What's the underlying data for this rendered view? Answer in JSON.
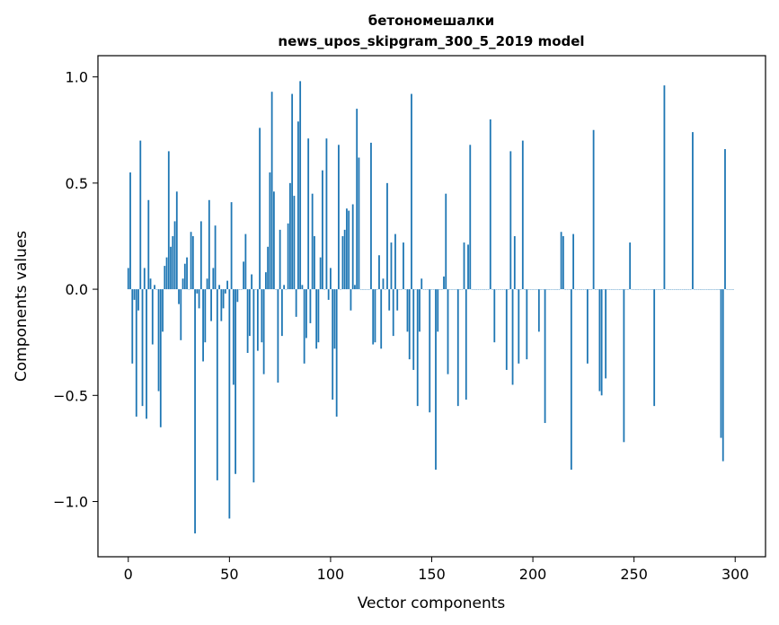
{
  "chart_data": {
    "type": "bar",
    "title": "бетономешалки",
    "subtitle": "news_upos_skipgram_300_5_2019 model",
    "xlabel": "Vector components",
    "ylabel": "Components values",
    "xlim": [
      -15,
      315
    ],
    "ylim": [
      -1.26,
      1.1
    ],
    "xticks": [
      0,
      50,
      100,
      150,
      200,
      250,
      300
    ],
    "xtick_labels": [
      "0",
      "50",
      "100",
      "150",
      "200",
      "250",
      "300"
    ],
    "yticks": [
      1.0,
      0.5,
      0.0,
      -0.5,
      -1.0
    ],
    "ytick_labels": [
      "1.0",
      "0.5",
      "0.0",
      "−0.5",
      "−1.0"
    ],
    "grid": false,
    "bar_color": "#1f77b4",
    "values": [
      0.1,
      0.55,
      -0.35,
      -0.05,
      -0.6,
      -0.1,
      0.7,
      -0.55,
      0.1,
      -0.61,
      0.42,
      0.05,
      -0.26,
      0.02,
      0.0,
      -0.48,
      -0.65,
      -0.2,
      0.11,
      0.15,
      0.65,
      0.2,
      0.25,
      0.32,
      0.46,
      -0.07,
      -0.24,
      0.05,
      0.12,
      0.15,
      0.0,
      0.27,
      0.25,
      -1.15,
      -0.02,
      -0.09,
      0.32,
      -0.34,
      -0.25,
      0.05,
      0.42,
      -0.15,
      0.1,
      0.3,
      -0.9,
      0.02,
      -0.15,
      -0.09,
      -0.02,
      0.04,
      -1.08,
      0.41,
      -0.45,
      -0.87,
      -0.06,
      0.0,
      0.0,
      0.13,
      0.26,
      -0.3,
      -0.22,
      0.07,
      -0.91,
      0.0,
      -0.29,
      0.76,
      -0.25,
      -0.4,
      0.08,
      0.2,
      0.55,
      0.93,
      0.46,
      0.0,
      -0.44,
      0.28,
      -0.22,
      0.02,
      0.0,
      0.31,
      0.5,
      0.92,
      0.44,
      -0.13,
      0.79,
      0.98,
      0.02,
      -0.35,
      -0.23,
      0.71,
      -0.16,
      0.45,
      0.25,
      -0.28,
      -0.25,
      0.15,
      0.56,
      0.0,
      0.71,
      -0.05,
      0.1,
      -0.52,
      -0.28,
      -0.6,
      0.68,
      0.0,
      0.25,
      0.28,
      0.38,
      0.37,
      -0.1,
      0.4,
      0.02,
      0.85,
      0.62,
      0.0,
      0.0,
      0.0,
      0.0,
      0.0,
      0.69,
      -0.26,
      -0.25,
      0.0,
      0.16,
      -0.28,
      0.05,
      0.0,
      0.5,
      -0.1,
      0.22,
      -0.22,
      0.26,
      -0.1,
      0.0,
      0.0,
      0.22,
      0.0,
      -0.2,
      -0.33,
      0.92,
      -0.38,
      0.0,
      -0.55,
      -0.2,
      0.05,
      0.0,
      0.0,
      0.0,
      -0.58,
      0.0,
      0.0,
      -0.85,
      -0.2,
      0.0,
      0.0,
      0.06,
      0.45,
      -0.4,
      0.0,
      0.0,
      0.0,
      0.0,
      -0.55,
      0.0,
      0.0,
      0.22,
      -0.52,
      0.21,
      0.68,
      0.0,
      0.0,
      0.0,
      0.0,
      0.0,
      0.0,
      0.0,
      0.0,
      0.0,
      0.8,
      0.0,
      -0.25,
      0.0,
      0.0,
      0.0,
      0.0,
      0.0,
      -0.38,
      0.0,
      0.65,
      -0.45,
      0.25,
      0.0,
      -0.35,
      0.0,
      0.7,
      0.0,
      -0.33,
      0.0,
      0.0,
      0.0,
      0.0,
      0.0,
      -0.2,
      0.0,
      0.0,
      -0.63,
      0.0,
      0.0,
      0.0,
      0.0,
      0.0,
      0.0,
      0.0,
      0.27,
      0.25,
      0.0,
      0.0,
      0.0,
      -0.85,
      0.26,
      0.0,
      0.0,
      0.0,
      0.0,
      0.0,
      0.0,
      -0.35,
      0.0,
      0.0,
      0.75,
      0.0,
      0.0,
      -0.48,
      -0.5,
      0.0,
      -0.42,
      0.0,
      0.0,
      0.0,
      0.0,
      0.0,
      0.0,
      0.0,
      0.0,
      -0.72,
      0.0,
      0.0,
      0.22,
      0.0,
      0.0,
      0.0,
      0.0,
      0.0,
      0.0,
      0.0,
      0.0,
      0.0,
      0.0,
      0.0,
      -0.55,
      0.0,
      0.0,
      0.0,
      0.0,
      0.96,
      0.0,
      0.0,
      0.0,
      0.0,
      0.0,
      0.0,
      0.0,
      0.0,
      0.0,
      0.0,
      0.0,
      0.0,
      0.0,
      0.74,
      0.0,
      0.0,
      0.0,
      0.0,
      0.0,
      0.0,
      0.0,
      0.0,
      0.0,
      0.0,
      0.0,
      0.0,
      0.0,
      -0.7,
      -0.81,
      0.66,
      0.0,
      0.0,
      0.0,
      0.0
    ]
  }
}
